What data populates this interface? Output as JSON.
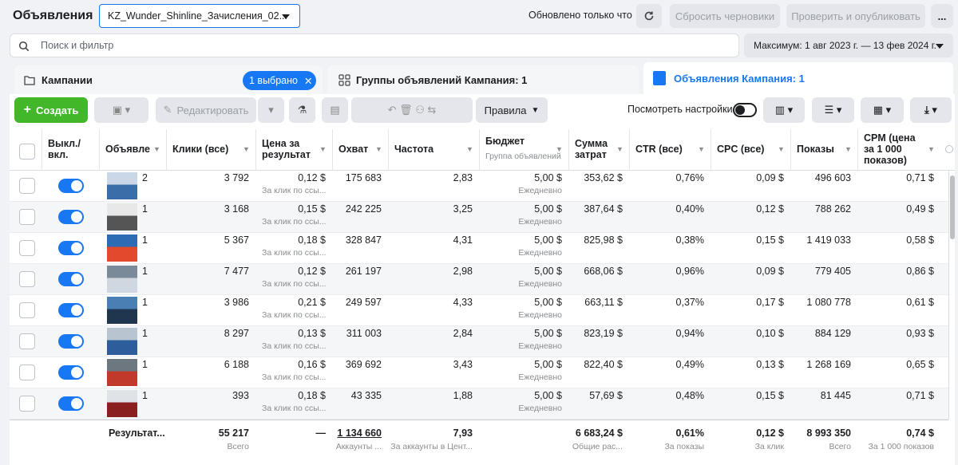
{
  "header": {
    "title": "Объявления",
    "account": "KZ_Wunder_Shinline_Зачисления_02...",
    "updated": "Обновлено только что",
    "reset": "Сбросить черновики",
    "publish": "Проверить и опубликовать",
    "more": "..."
  },
  "search": {
    "placeholder": "Поиск и фильтр",
    "date_range": "Максимум: 1 авг 2023 г. — 13 фев 2024 г."
  },
  "tabs": {
    "campaigns": "Кампании",
    "selected": "1 выбрано",
    "adsets": "Группы объявлений Кампания: 1",
    "ads": "Объявления Кампания: 1"
  },
  "toolbar": {
    "create": "Создать",
    "edit": "Редактировать",
    "rules": "Правила",
    "view_settings": "Посмотреть настройки"
  },
  "table": {
    "columns": [
      "Выкл./вкл.",
      "Объявле",
      "Клики (все)",
      "Цена за результат",
      "Охват",
      "Частота",
      "Бюджет",
      "Сумма затрат",
      "CTR (все)",
      "CPC (все)",
      "Показы",
      "CPM (цена за 1 000 показов)"
    ],
    "budget_sub": "Группа объявлений",
    "rows": [
      [
        "2",
        "3 792",
        "0,12 $",
        "За клик по ссы...",
        "175 683",
        "2,83",
        "5,00 $",
        "Ежедневно",
        "353,62 $",
        "0,76%",
        "0,09 $",
        "496 603",
        "0,71 $"
      ],
      [
        "1",
        "3 168",
        "0,15 $",
        "За клик по ссы...",
        "242 225",
        "3,25",
        "5,00 $",
        "Ежедневно",
        "387,64 $",
        "0,40%",
        "0,12 $",
        "788 262",
        "0,49 $"
      ],
      [
        "1",
        "5 367",
        "0,18 $",
        "За клик по ссы...",
        "328 847",
        "4,31",
        "5,00 $",
        "Ежедневно",
        "825,98 $",
        "0,38%",
        "0,15 $",
        "1 419 033",
        "0,58 $"
      ],
      [
        "1",
        "7 477",
        "0,12 $",
        "За клик по ссы...",
        "261 197",
        "2,98",
        "5,00 $",
        "Ежедневно",
        "668,06 $",
        "0,96%",
        "0,09 $",
        "779 405",
        "0,86 $"
      ],
      [
        "1",
        "3 986",
        "0,21 $",
        "За клик по ссы...",
        "249 597",
        "4,33",
        "5,00 $",
        "Ежедневно",
        "663,11 $",
        "0,37%",
        "0,17 $",
        "1 080 778",
        "0,61 $"
      ],
      [
        "1",
        "8 297",
        "0,13 $",
        "За клик по ссы...",
        "311 003",
        "2,84",
        "5,00 $",
        "Ежедневно",
        "823,19 $",
        "0,94%",
        "0,10 $",
        "884 129",
        "0,93 $"
      ],
      [
        "1",
        "6 188",
        "0,16 $",
        "За клик по ссы...",
        "369 692",
        "3,43",
        "5,00 $",
        "Ежедневно",
        "822,40 $",
        "0,49%",
        "0,13 $",
        "1 268 169",
        "0,65 $"
      ],
      [
        "1",
        "393",
        "0,18 $",
        "За клик по ссы...",
        "43 335",
        "1,88",
        "5,00 $",
        "Ежедневно",
        "57,69 $",
        "0,48%",
        "0,15 $",
        "81 445",
        "0,71 $"
      ]
    ],
    "totals": {
      "label": "Результат...",
      "cells": [
        {
          "value": "55 217",
          "sub": "Всего"
        },
        {
          "value": "—"
        },
        {
          "value": "1 134 660",
          "sub": "Аккаунты ..."
        },
        {
          "value": "7,93",
          "sub": "За аккаунты в Цент..."
        },
        {
          "value": "6 683,24 $",
          "sub": "Общие рас..."
        },
        {
          "value": "0,61%",
          "sub": "За показы"
        },
        {
          "value": "0,12 $",
          "sub": "За клик"
        },
        {
          "value": "8 993 350",
          "sub": "Всего"
        },
        {
          "value": "0,74 $",
          "sub": "За 1 000 показов"
        }
      ]
    }
  }
}
